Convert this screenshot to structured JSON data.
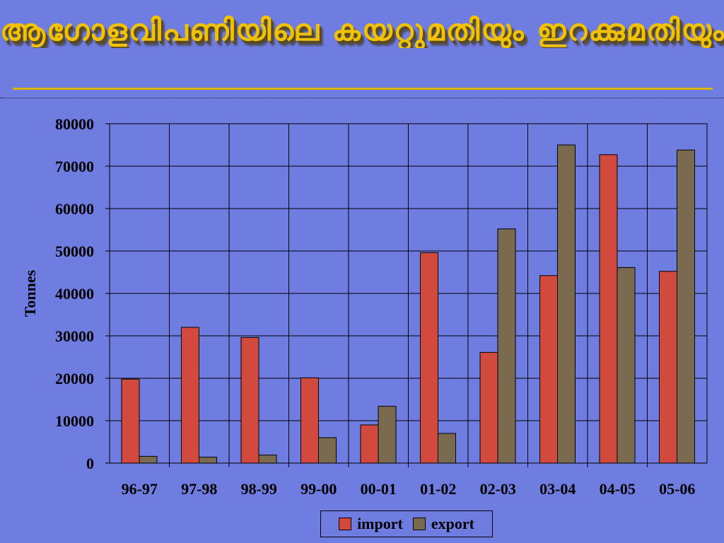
{
  "title": "ആഗോളവിപണിയിലെ കയറ്റുമതിയും ഇറക്കുമതിയും",
  "chart_data": {
    "type": "bar",
    "categories": [
      "96-97",
      "97-98",
      "98-99",
      "99-00",
      "00-01",
      "01-02",
      "02-03",
      "03-04",
      "04-05",
      "05-06"
    ],
    "series": [
      {
        "name": "import",
        "color": "#d24a3e",
        "values": [
          19800,
          32000,
          29600,
          20100,
          9000,
          49600,
          26100,
          44200,
          72700,
          45200
        ]
      },
      {
        "name": "export",
        "color": "#7a6a50",
        "values": [
          1600,
          1400,
          1900,
          6000,
          13400,
          7000,
          55200,
          75000,
          46100,
          73800
        ]
      }
    ],
    "ylabel": "Tonnes",
    "xlabel": "",
    "ylim": [
      0,
      80000
    ],
    "yticks": [
      "0",
      "10000",
      "20000",
      "30000",
      "40000",
      "50000",
      "60000",
      "70000",
      "80000"
    ],
    "grid": true,
    "legend_position": "bottom-center"
  }
}
